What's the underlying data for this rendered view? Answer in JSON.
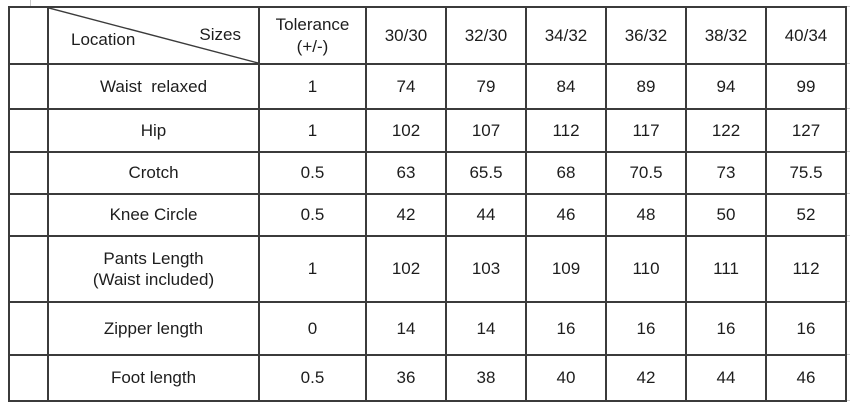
{
  "table": {
    "corner": {
      "left_label": "Location",
      "right_label": "Sizes"
    },
    "tolerance_header": {
      "line1": "Tolerance",
      "line2": "(+/-)"
    },
    "size_columns": [
      "30/30",
      "32/30",
      "34/32",
      "36/32",
      "38/32",
      "40/34"
    ],
    "rows": [
      {
        "location": "Waist  relaxed",
        "tolerance": "1",
        "values": [
          "74",
          "79",
          "84",
          "89",
          "94",
          "99"
        ]
      },
      {
        "location": "Hip",
        "tolerance": "1",
        "values": [
          "102",
          "107",
          "112",
          "117",
          "122",
          "127"
        ]
      },
      {
        "location": "Crotch",
        "tolerance": "0.5",
        "values": [
          "63",
          "65.5",
          "68",
          "70.5",
          "73",
          "75.5"
        ]
      },
      {
        "location": "Knee Circle",
        "tolerance": "0.5",
        "values": [
          "42",
          "44",
          "46",
          "48",
          "50",
          "52"
        ]
      },
      {
        "location": "Pants Length\n(Waist included)",
        "tolerance": "1",
        "values": [
          "102",
          "103",
          "109",
          "110",
          "111",
          "112"
        ]
      },
      {
        "location": "Zipper length",
        "tolerance": "0",
        "values": [
          "14",
          "14",
          "16",
          "16",
          "16",
          "16"
        ]
      },
      {
        "location": "Foot length",
        "tolerance": "0.5",
        "values": [
          "36",
          "38",
          "40",
          "42",
          "44",
          "46"
        ]
      }
    ],
    "colors": {
      "border": "#3b3b3b",
      "text": "#1d1d1d",
      "background": "#ffffff",
      "gridline_stub": "#c9c9c9"
    }
  }
}
